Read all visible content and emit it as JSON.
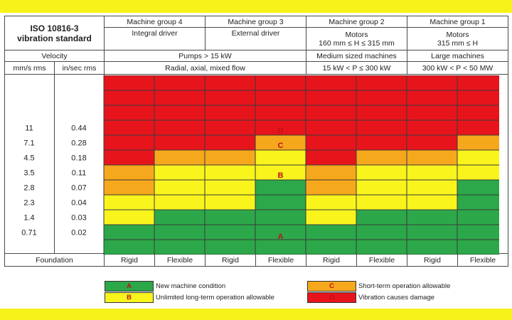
{
  "header": {
    "standard": "ISO 10816-3",
    "standard_sub": "vibration standard",
    "velocity": "Velocity",
    "unit_mm": "mm/s rms",
    "unit_in": "in/sec rms",
    "groups": [
      {
        "name": "Machine group 4",
        "desc": "Integral driver"
      },
      {
        "name": "Machine group 3",
        "desc": "External driver"
      },
      {
        "name": "Machine group 2",
        "desc": "Motors",
        "desc2": "160 mm ≤ H ≤ 315 mm"
      },
      {
        "name": "Machine group 1",
        "desc": "Motors",
        "desc2": "315 mm ≤ H"
      }
    ],
    "pumps": "Pumps > 15 kW",
    "pumps_flow": "Radial, axial, mixed flow",
    "medium": "Medium sized machines",
    "medium_range": "15 kW < P ≤ 300 kW",
    "large": "Large machines",
    "large_range": "300 kW < P < 50 MW"
  },
  "foundation_label": "Foundation",
  "foundations": [
    "Rigid",
    "Flexible",
    "Rigid",
    "Flexible",
    "Rigid",
    "Flexible",
    "Rigid",
    "Flexible"
  ],
  "colors": {
    "A": "#2ca84a",
    "B": "#f8f41c",
    "C": "#f6a81c",
    "D": "#e8141c",
    "zone_text": "#c01018"
  },
  "chart_data": {
    "type": "heatmap",
    "velocity_mm_s": [
      "11",
      "7.1",
      "4.5",
      "3.5",
      "2.8",
      "2.3",
      "1.4",
      "0.71"
    ],
    "velocity_in_s": [
      "0.44",
      "0.28",
      "0.18",
      "0.11",
      "0.07",
      "0.04",
      "0.03",
      "0.02"
    ],
    "columns": [
      "Rigid",
      "Flexible",
      "Rigid",
      "Flexible",
      "Rigid",
      "Flexible",
      "Rigid",
      "Flexible"
    ],
    "grid": [
      [
        "D",
        "D",
        "D",
        "D",
        "D",
        "D",
        "D",
        "D"
      ],
      [
        "D",
        "D",
        "D",
        "D",
        "D",
        "D",
        "D",
        "D"
      ],
      [
        "D",
        "D",
        "D",
        "D",
        "D",
        "D",
        "D",
        "D"
      ],
      [
        "D",
        "D",
        "D",
        "D",
        "D",
        "D",
        "D",
        "D"
      ],
      [
        "D",
        "D",
        "D",
        "C",
        "D",
        "D",
        "D",
        "C"
      ],
      [
        "D",
        "C",
        "C",
        "B",
        "D",
        "C",
        "C",
        "B"
      ],
      [
        "C",
        "B",
        "B",
        "B",
        "C",
        "B",
        "B",
        "B"
      ],
      [
        "C",
        "B",
        "B",
        "A",
        "C",
        "B",
        "B",
        "A"
      ],
      [
        "B",
        "B",
        "B",
        "A",
        "B",
        "B",
        "B",
        "A"
      ],
      [
        "B",
        "A",
        "A",
        "A",
        "B",
        "A",
        "A",
        "A"
      ],
      [
        "A",
        "A",
        "A",
        "A",
        "A",
        "A",
        "A",
        "A"
      ],
      [
        "A",
        "A",
        "A",
        "A",
        "A",
        "A",
        "A",
        "A"
      ]
    ],
    "zone_labels": [
      "D",
      "C",
      "B",
      "A"
    ]
  },
  "legend": [
    {
      "zone": "A",
      "text": "New machine condition"
    },
    {
      "zone": "B",
      "text": "Unlimited long-term operation allowable"
    },
    {
      "zone": "C",
      "text": "Short-term operation allowable"
    },
    {
      "zone": "D",
      "text": "Vibration causes damage"
    }
  ]
}
